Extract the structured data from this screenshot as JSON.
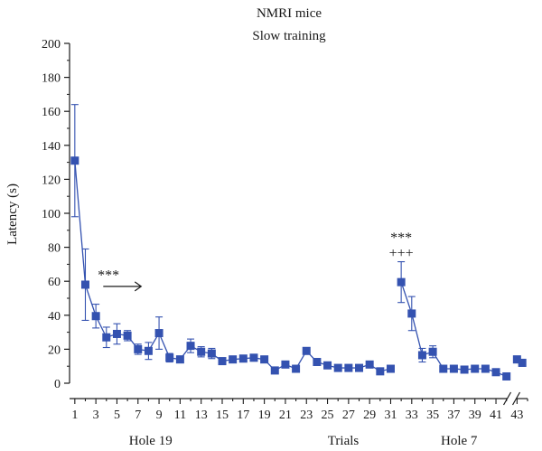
{
  "chart_data": {
    "type": "line",
    "title": "NMRI mice",
    "subtitle": "Slow training",
    "xlabel": "Trials",
    "ylabel": "Latency (s)",
    "ylim": [
      0,
      200
    ],
    "xlim": [
      0.5,
      44
    ],
    "y_ticks": [
      0,
      20,
      40,
      60,
      80,
      100,
      120,
      140,
      160,
      180,
      200
    ],
    "x_tick_labels": [
      1,
      3,
      5,
      7,
      9,
      11,
      13,
      15,
      17,
      19,
      21,
      23,
      25,
      27,
      29,
      31,
      33,
      35,
      37,
      39,
      41,
      43
    ],
    "axis_break_between": [
      42,
      43
    ],
    "grid": false,
    "series_color": "#3452b0",
    "series": [
      {
        "segments": [
          {
            "x": [
              1,
              2,
              3,
              4,
              5,
              6,
              7,
              8,
              9,
              10,
              11,
              12,
              13,
              14,
              15,
              16,
              17,
              18,
              19,
              20,
              21,
              22,
              23,
              24,
              25,
              26,
              27,
              28,
              29,
              30,
              31
            ],
            "y": [
              131,
              58,
              39.5,
              27,
              29,
              28,
              20,
              19,
              29.5,
              15,
              14,
              22,
              18.5,
              17.5,
              13,
              14,
              14.5,
              15,
              14,
              7.5,
              11,
              8.5,
              19,
              12.5,
              10.5,
              9,
              9,
              9,
              11,
              7,
              8.5
            ],
            "err": [
              33,
              21,
              7,
              6,
              6,
              3,
              3,
              5,
              9.5,
              2.5,
              2,
              4,
              3,
              3,
              1.5,
              1.5,
              1.5,
              1.5,
              1.5,
              1,
              1,
              1,
              1.5,
              1.5,
              1,
              1,
              1,
              1,
              1,
              1,
              1
            ]
          },
          {
            "x": [
              32,
              33,
              34,
              35,
              36,
              37,
              38,
              39,
              40,
              41,
              42
            ],
            "y": [
              59.5,
              41,
              16.5,
              18.5,
              8.5,
              8.5,
              8,
              8.5,
              8.5,
              6.5,
              4
            ],
            "err": [
              12,
              10,
              4,
              3.5,
              1,
              1,
              1,
              1,
              1,
              1,
              1
            ]
          },
          {
            "x": [
              43,
              43.5
            ],
            "y": [
              14,
              12
            ],
            "err": [
              2,
              2
            ]
          }
        ]
      }
    ],
    "annotations": [
      {
        "text": "***",
        "x": 4.2,
        "y": 61
      },
      {
        "text": "***",
        "x": 32,
        "y": 83
      },
      {
        "text": "+++",
        "x": 32,
        "y": 74
      }
    ],
    "arrow": {
      "x_start": 3.7,
      "x_end": 7.3,
      "y": 57
    },
    "group_labels": [
      {
        "text": "Hole 19",
        "x": 8.2
      },
      {
        "text": "Trials",
        "x": 26.5
      },
      {
        "text": "Hole 7",
        "x": 37.5
      }
    ]
  }
}
